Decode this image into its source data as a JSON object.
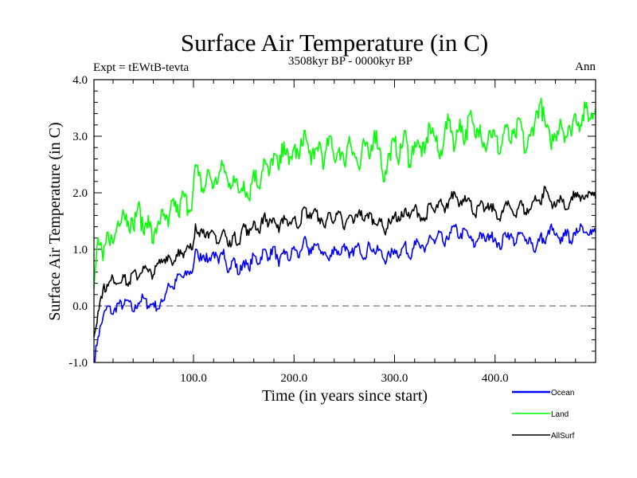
{
  "chart_data": {
    "type": "line",
    "title": "Surface Air Temperature (in C)",
    "subtitle": "3508kyr BP - 0000kyr BP",
    "annotation_left": "Expt = tEWtB-tevta",
    "annotation_right": "Ann",
    "xlabel": "Time (in years since start)",
    "ylabel": "Surface Air Temperature (in C)",
    "xlim": [
      1,
      500
    ],
    "ylim": [
      -1.0,
      4.0
    ],
    "xticks": [
      100,
      200,
      300,
      400
    ],
    "xtick_labels": [
      "100.0",
      "200.0",
      "300.0",
      "400.0"
    ],
    "xminor_step": 20,
    "yticks": [
      -1.0,
      0.0,
      1.0,
      2.0,
      3.0,
      4.0
    ],
    "ytick_labels": [
      "-1.0",
      "0.0",
      "1.0",
      "2.0",
      "3.0",
      "4.0"
    ],
    "yminor_step": 0.2,
    "reference_line": {
      "y": 0.0,
      "style": "dashed"
    },
    "grid": false,
    "legend": {
      "position": "bottom-right"
    },
    "x": [
      1,
      5,
      10,
      15,
      20,
      25,
      30,
      35,
      40,
      45,
      50,
      55,
      60,
      65,
      70,
      75,
      80,
      85,
      90,
      95,
      99,
      102,
      105,
      110,
      115,
      120,
      125,
      130,
      135,
      140,
      145,
      150,
      155,
      160,
      165,
      170,
      175,
      180,
      185,
      190,
      195,
      200,
      205,
      210,
      215,
      220,
      225,
      230,
      235,
      240,
      245,
      250,
      255,
      260,
      265,
      270,
      275,
      280,
      285,
      290,
      295,
      300,
      305,
      310,
      315,
      320,
      325,
      330,
      335,
      340,
      345,
      350,
      355,
      360,
      365,
      370,
      375,
      380,
      385,
      390,
      395,
      400,
      405,
      410,
      415,
      420,
      425,
      430,
      435,
      440,
      445,
      450,
      455,
      460,
      465,
      470,
      475,
      480,
      485,
      490,
      495,
      500
    ],
    "series": [
      {
        "name": "Ocean",
        "color": "#0000ff",
        "values": [
          -1.0,
          -0.55,
          -0.2,
          0.0,
          -0.15,
          0.05,
          0.0,
          0.1,
          -0.1,
          0.05,
          0.15,
          0.0,
          0.05,
          -0.05,
          0.1,
          0.4,
          0.3,
          0.55,
          0.5,
          0.6,
          0.6,
          1.0,
          0.85,
          0.9,
          0.8,
          0.95,
          0.75,
          1.0,
          0.6,
          0.85,
          0.55,
          0.8,
          0.65,
          0.9,
          0.75,
          1.0,
          0.85,
          1.05,
          0.7,
          1.0,
          0.8,
          1.05,
          0.85,
          1.2,
          0.9,
          1.1,
          1.0,
          0.95,
          0.8,
          1.05,
          0.9,
          1.1,
          0.85,
          1.0,
          1.05,
          0.85,
          1.1,
          0.95,
          1.0,
          0.8,
          0.9,
          1.0,
          0.9,
          1.1,
          0.85,
          1.15,
          1.05,
          0.95,
          1.25,
          1.1,
          1.3,
          1.05,
          1.3,
          1.4,
          1.2,
          1.35,
          1.2,
          1.05,
          1.3,
          1.15,
          1.25,
          1.2,
          1.0,
          1.3,
          1.25,
          1.1,
          1.3,
          1.15,
          1.2,
          0.95,
          1.25,
          1.1,
          1.4,
          1.25,
          1.1,
          1.35,
          1.15,
          1.25,
          1.45,
          1.3,
          1.35,
          1.3
        ]
      },
      {
        "name": "Land",
        "color": "#00ff00",
        "values": [
          0.3,
          1.2,
          0.8,
          1.3,
          1.1,
          1.5,
          1.7,
          1.5,
          1.4,
          1.8,
          1.3,
          1.6,
          1.1,
          1.5,
          1.6,
          1.4,
          1.9,
          1.6,
          2.0,
          1.7,
          1.9,
          2.5,
          2.3,
          2.0,
          2.4,
          2.1,
          2.3,
          2.5,
          2.1,
          2.3,
          2.0,
          2.2,
          1.9,
          2.4,
          2.1,
          2.6,
          2.3,
          2.7,
          2.4,
          2.9,
          2.5,
          2.8,
          2.6,
          3.1,
          2.7,
          2.6,
          2.9,
          2.5,
          3.0,
          2.6,
          2.8,
          2.5,
          3.0,
          2.7,
          2.4,
          2.9,
          2.6,
          3.1,
          2.8,
          2.2,
          2.7,
          2.9,
          2.6,
          3.1,
          2.5,
          2.9,
          2.8,
          2.7,
          3.2,
          3.0,
          2.6,
          3.1,
          3.3,
          2.8,
          3.3,
          2.9,
          3.4,
          3.0,
          3.2,
          2.8,
          3.1,
          3.0,
          2.7,
          3.2,
          2.9,
          3.0,
          3.3,
          2.7,
          3.0,
          3.3,
          3.6,
          3.2,
          2.9,
          3.0,
          3.3,
          3.0,
          3.1,
          3.4,
          3.2,
          3.5,
          3.3,
          3.5
        ]
      },
      {
        "name": "AllSurf",
        "color": "#000000",
        "values": [
          -0.55,
          -0.1,
          0.3,
          0.35,
          0.5,
          0.4,
          0.55,
          0.35,
          0.6,
          0.5,
          0.7,
          0.6,
          0.55,
          0.75,
          0.8,
          0.9,
          0.75,
          1.0,
          0.85,
          1.05,
          1.0,
          1.45,
          1.3,
          1.35,
          1.2,
          1.3,
          1.1,
          1.35,
          1.05,
          1.25,
          1.1,
          1.45,
          1.25,
          1.5,
          1.3,
          1.6,
          1.45,
          1.55,
          1.3,
          1.6,
          1.45,
          1.55,
          1.4,
          1.75,
          1.55,
          1.7,
          1.55,
          1.4,
          1.65,
          1.5,
          1.65,
          1.35,
          1.6,
          1.5,
          1.7,
          1.5,
          1.65,
          1.45,
          1.55,
          1.3,
          1.5,
          1.6,
          1.5,
          1.7,
          1.55,
          1.75,
          1.6,
          1.5,
          1.8,
          1.65,
          1.85,
          1.65,
          1.9,
          2.0,
          1.8,
          1.95,
          1.85,
          1.6,
          1.8,
          1.7,
          1.75,
          1.7,
          1.5,
          1.8,
          1.75,
          1.6,
          1.85,
          1.65,
          1.7,
          1.95,
          1.8,
          2.1,
          1.85,
          1.75,
          1.95,
          1.7,
          1.85,
          2.0,
          1.85,
          1.95,
          2.0,
          1.9
        ]
      }
    ]
  }
}
